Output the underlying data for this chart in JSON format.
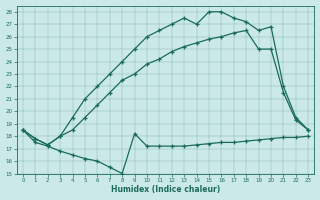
{
  "xlabel": "Humidex (Indice chaleur)",
  "xlim": [
    -0.5,
    23.5
  ],
  "ylim": [
    15,
    28.5
  ],
  "yticks": [
    15,
    16,
    17,
    18,
    19,
    20,
    21,
    22,
    23,
    24,
    25,
    26,
    27,
    28
  ],
  "xticks": [
    0,
    1,
    2,
    3,
    4,
    5,
    6,
    7,
    8,
    9,
    10,
    11,
    12,
    13,
    14,
    15,
    16,
    17,
    18,
    19,
    20,
    21,
    22,
    23
  ],
  "bg_color": "#cce9e9",
  "line_color": "#1a6b5a",
  "line1_upper": {
    "x": [
      0,
      1,
      2,
      3,
      4,
      5,
      6,
      7,
      8,
      9,
      10,
      11,
      12,
      13,
      14,
      15,
      16,
      17,
      18,
      19,
      20,
      21,
      22,
      23
    ],
    "y": [
      18.5,
      17.8,
      17.3,
      18.0,
      19.5,
      21.0,
      22.0,
      23.0,
      24.0,
      25.0,
      26.0,
      26.5,
      27.0,
      27.5,
      27.0,
      28.0,
      28.0,
      27.5,
      27.2,
      26.5,
      26.8,
      22.0,
      19.5,
      18.5
    ]
  },
  "line2_middle": {
    "x": [
      0,
      1,
      2,
      3,
      4,
      5,
      6,
      7,
      8,
      9,
      10,
      11,
      12,
      13,
      14,
      15,
      16,
      17,
      18,
      19,
      20,
      21,
      22,
      23
    ],
    "y": [
      18.5,
      17.8,
      17.3,
      18.0,
      18.5,
      19.5,
      20.5,
      21.5,
      22.5,
      23.0,
      23.8,
      24.2,
      24.8,
      25.2,
      25.5,
      25.8,
      26.0,
      26.3,
      26.5,
      25.0,
      25.0,
      21.5,
      19.3,
      18.5
    ]
  },
  "line3_lower": {
    "x": [
      0,
      1,
      2,
      3,
      4,
      5,
      6,
      7,
      8,
      9,
      10,
      11,
      12,
      13,
      14,
      15,
      16,
      17,
      18,
      19,
      20,
      21,
      22,
      23
    ],
    "y": [
      18.5,
      17.5,
      17.2,
      16.8,
      16.5,
      16.2,
      16.0,
      15.5,
      15.0,
      18.2,
      17.2,
      17.2,
      17.2,
      17.2,
      17.3,
      17.4,
      17.5,
      17.5,
      17.6,
      17.7,
      17.8,
      17.9,
      17.9,
      18.0
    ]
  }
}
